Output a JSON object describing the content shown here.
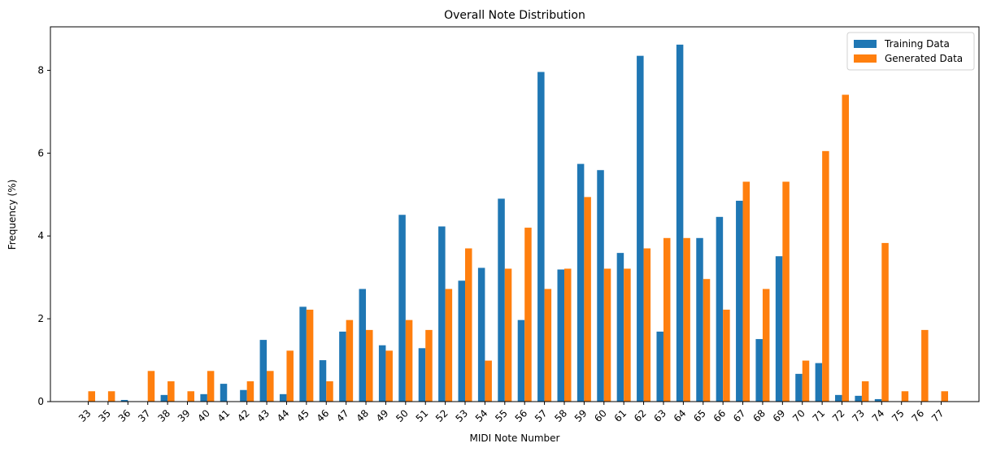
{
  "chart_data": {
    "type": "bar",
    "title": "Overall Note Distribution",
    "xlabel": "MIDI Note Number",
    "ylabel": "Frequency (%)",
    "categories": [
      "33",
      "35",
      "36",
      "37",
      "38",
      "39",
      "40",
      "41",
      "42",
      "43",
      "44",
      "45",
      "46",
      "47",
      "48",
      "49",
      "50",
      "51",
      "52",
      "53",
      "54",
      "55",
      "56",
      "57",
      "58",
      "59",
      "60",
      "61",
      "62",
      "63",
      "64",
      "65",
      "66",
      "67",
      "68",
      "69",
      "70",
      "71",
      "72",
      "73",
      "74",
      "75",
      "76",
      "77"
    ],
    "series": [
      {
        "name": "Training Data",
        "color": "#1f77b4",
        "values": [
          0,
          0,
          0.04,
          0,
          0.16,
          0,
          0.18,
          0.43,
          0.28,
          1.49,
          0.18,
          2.29,
          1.0,
          1.69,
          2.72,
          1.36,
          4.51,
          1.29,
          4.23,
          2.92,
          3.23,
          4.9,
          1.97,
          7.96,
          3.19,
          5.74,
          5.59,
          3.59,
          8.35,
          1.69,
          8.62,
          3.95,
          4.46,
          4.85,
          1.51,
          3.51,
          0.67,
          0.93,
          0.16,
          0.14,
          0.06,
          0,
          0,
          0
        ]
      },
      {
        "name": "Generated Data",
        "color": "#ff7f0e",
        "values": [
          0.25,
          0.25,
          0,
          0.74,
          0.49,
          0.25,
          0.74,
          0,
          0.49,
          0.74,
          1.23,
          2.22,
          0.49,
          1.97,
          1.73,
          1.23,
          1.97,
          1.73,
          2.72,
          3.7,
          0.99,
          3.21,
          4.2,
          2.72,
          3.21,
          4.94,
          3.21,
          3.21,
          3.7,
          3.95,
          3.95,
          2.96,
          2.22,
          5.31,
          2.72,
          5.31,
          0.99,
          6.05,
          7.41,
          0.49,
          3.83,
          0.25,
          1.73,
          0.25
        ]
      }
    ],
    "yticks": [
      "0",
      "2",
      "4",
      "6",
      "8"
    ],
    "ylim": [
      0,
      9.05
    ],
    "grid": false,
    "legend_position": "top-right"
  }
}
